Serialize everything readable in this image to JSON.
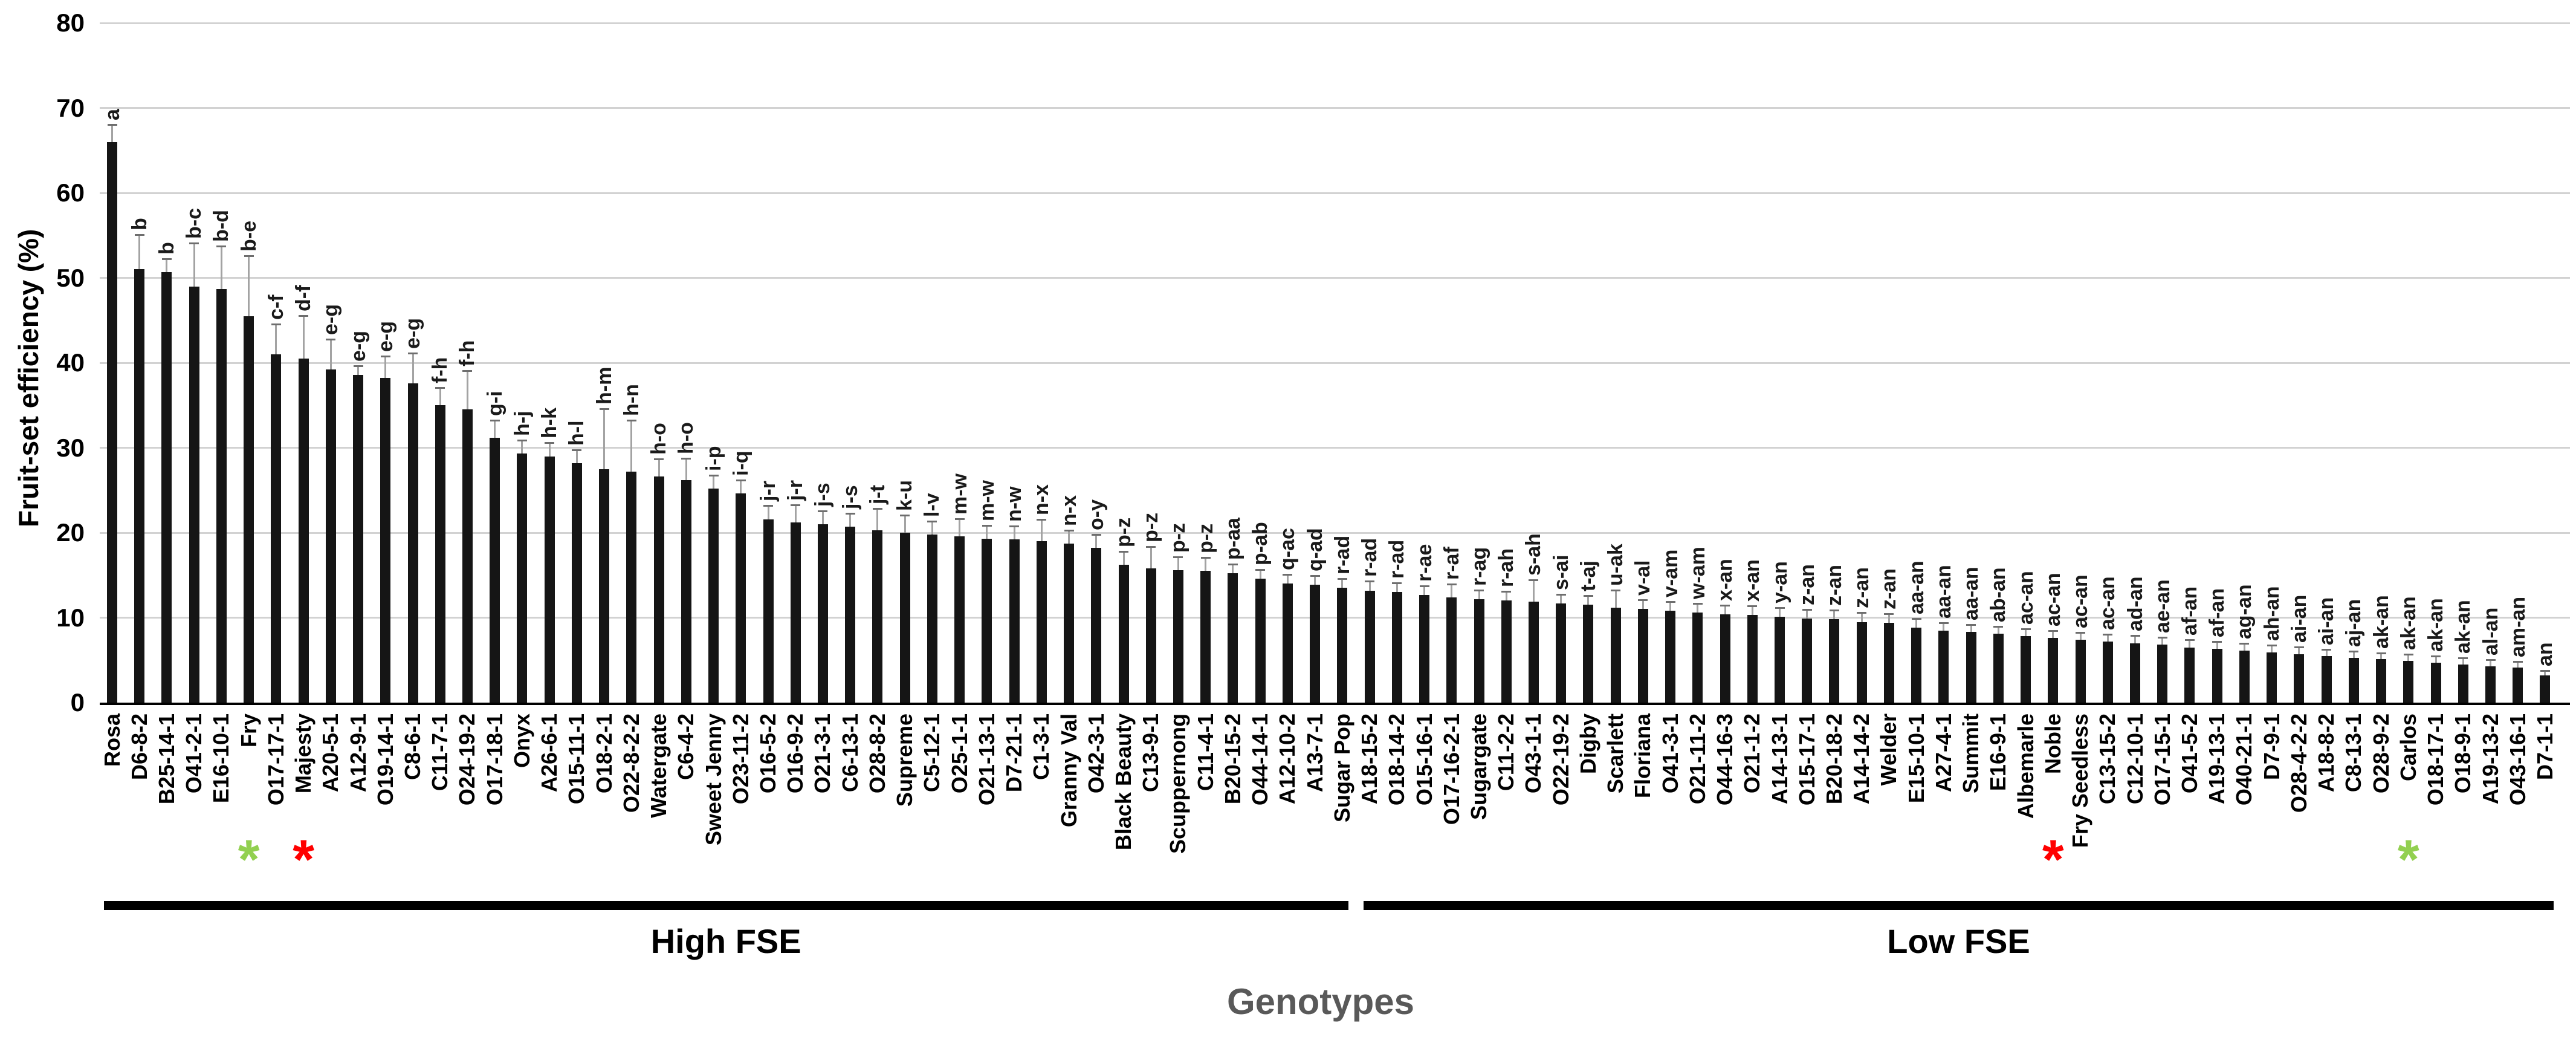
{
  "chart_data": {
    "type": "bar",
    "title": "",
    "ylabel": "Fruit-set efficiency (%)",
    "xlabel": "Genotypes",
    "ylim": [
      0,
      80
    ],
    "yticks": [
      0,
      10,
      20,
      30,
      40,
      50,
      60,
      70,
      80
    ],
    "grid": "horizontal",
    "legend": "none",
    "bar_color": "#151515",
    "group_labels": {
      "high": "High FSE",
      "low": "Low FSE"
    },
    "high_fse_count": 46,
    "annotations": {
      "green_star_genotypes": [
        "Fry",
        "Carlos"
      ],
      "red_star_genotypes": [
        "Majesty",
        "Noble"
      ],
      "green_color": "#92d050",
      "red_color": "#ff0000"
    },
    "bars": [
      {
        "genotype": "Rosa",
        "value": 66,
        "error": 2,
        "letters": "a",
        "star": null
      },
      {
        "genotype": "D6-8-2",
        "value": 51,
        "error": 4,
        "letters": "b",
        "star": null
      },
      {
        "genotype": "B25-14-1",
        "value": 50.7,
        "error": 1.5,
        "letters": "b",
        "star": null
      },
      {
        "genotype": "O41-2-1",
        "value": 49,
        "error": 5,
        "letters": "b-c",
        "star": null
      },
      {
        "genotype": "E16-10-1",
        "value": 48.7,
        "error": 5,
        "letters": "b-d",
        "star": null
      },
      {
        "genotype": "Fry",
        "value": 45.5,
        "error": 7,
        "letters": "b-e",
        "star": "green"
      },
      {
        "genotype": "O17-17-1",
        "value": 41,
        "error": 3.5,
        "letters": "c-f",
        "star": null
      },
      {
        "genotype": "Majesty",
        "value": 40.5,
        "error": 5,
        "letters": "d-f",
        "star": "red"
      },
      {
        "genotype": "A20-5-1",
        "value": 39.2,
        "error": 3.5,
        "letters": "e-g",
        "star": null
      },
      {
        "genotype": "A12-9-1",
        "value": 38.6,
        "error": 1,
        "letters": "e-g",
        "star": null
      },
      {
        "genotype": "O19-14-1",
        "value": 38.2,
        "error": 2.5,
        "letters": "e-g",
        "star": null
      },
      {
        "genotype": "C8-6-1",
        "value": 37.6,
        "error": 3.5,
        "letters": "e-g",
        "star": null
      },
      {
        "genotype": "C11-7-1",
        "value": 35,
        "error": 2,
        "letters": "f-h",
        "star": null
      },
      {
        "genotype": "O24-19-2",
        "value": 34.5,
        "error": 4.5,
        "letters": "f-h",
        "star": null
      },
      {
        "genotype": "O17-18-1",
        "value": 31.2,
        "error": 2,
        "letters": "g-i",
        "star": null
      },
      {
        "genotype": "Onyx",
        "value": 29.3,
        "error": 1.5,
        "letters": "h-j",
        "star": null
      },
      {
        "genotype": "A26-6-1",
        "value": 29,
        "error": 1.5,
        "letters": "h-k",
        "star": null
      },
      {
        "genotype": "O15-11-1",
        "value": 28.2,
        "error": 1.5,
        "letters": "h-l",
        "star": null
      },
      {
        "genotype": "O18-2-1",
        "value": 27.5,
        "error": 7,
        "letters": "h-m",
        "star": null
      },
      {
        "genotype": "O22-8-2-2",
        "value": 27.2,
        "error": 6,
        "letters": "h-n",
        "star": null
      },
      {
        "genotype": "Watergate",
        "value": 26.6,
        "error": 2,
        "letters": "h-o",
        "star": null
      },
      {
        "genotype": "C6-4-2",
        "value": 26.2,
        "error": 2.5,
        "letters": "h-o",
        "star": null
      },
      {
        "genotype": "Sweet Jenny",
        "value": 25.2,
        "error": 1.5,
        "letters": "i-p",
        "star": null
      },
      {
        "genotype": "O23-11-2",
        "value": 24.6,
        "error": 1.5,
        "letters": "i-q",
        "star": null
      },
      {
        "genotype": "O16-5-2",
        "value": 21.6,
        "error": 1.5,
        "letters": "j-r",
        "star": null
      },
      {
        "genotype": "O16-9-2",
        "value": 21.2,
        "error": 2,
        "letters": "j-r",
        "star": null
      },
      {
        "genotype": "O21-3-1",
        "value": 21,
        "error": 1.5,
        "letters": "j-s",
        "star": null
      },
      {
        "genotype": "C6-13-1",
        "value": 20.7,
        "error": 1.5,
        "letters": "j-s",
        "star": null
      },
      {
        "genotype": "O28-8-2",
        "value": 20.3,
        "error": 2.5,
        "letters": "j-t",
        "star": null
      },
      {
        "genotype": "Supreme",
        "value": 20,
        "error": 2,
        "letters": "k-u",
        "star": null
      },
      {
        "genotype": "C5-12-1",
        "value": 19.8,
        "error": 1.5,
        "letters": "l-v",
        "star": null
      },
      {
        "genotype": "O25-1-1",
        "value": 19.6,
        "error": 2,
        "letters": "m-w",
        "star": null
      },
      {
        "genotype": "O21-13-1",
        "value": 19.3,
        "error": 1.5,
        "letters": "m-w",
        "star": null
      },
      {
        "genotype": "D7-21-1",
        "value": 19.2,
        "error": 1.5,
        "letters": "n-w",
        "star": null
      },
      {
        "genotype": "C1-3-1",
        "value": 19,
        "error": 2.5,
        "letters": "n-x",
        "star": null
      },
      {
        "genotype": "Granny Val",
        "value": 18.7,
        "error": 1.5,
        "letters": "n-x",
        "star": null
      },
      {
        "genotype": "O42-3-1",
        "value": 18.2,
        "error": 1.5,
        "letters": "o-y",
        "star": null
      },
      {
        "genotype": "Black Beauty",
        "value": 16.2,
        "error": 1.5,
        "letters": "p-z",
        "star": null
      },
      {
        "genotype": "C13-9-1",
        "value": 15.8,
        "error": 2.5,
        "letters": "p-z",
        "star": null
      },
      {
        "genotype": "Scuppernong",
        "value": 15.6,
        "error": 1.5,
        "letters": "p-z",
        "star": null
      },
      {
        "genotype": "C11-4-1",
        "value": 15.5,
        "error": 1.5,
        "letters": "p-z",
        "star": null
      },
      {
        "genotype": "B20-15-2",
        "value": 15.2,
        "error": 1,
        "letters": "p-aa",
        "star": null
      },
      {
        "genotype": "O44-14-1",
        "value": 14.6,
        "error": 1,
        "letters": "p-ab",
        "star": null
      },
      {
        "genotype": "A12-10-2",
        "value": 14,
        "error": 1,
        "letters": "q-ac",
        "star": null
      },
      {
        "genotype": "A13-7-1",
        "value": 13.9,
        "error": 1,
        "letters": "q-ad",
        "star": null
      },
      {
        "genotype": "Sugar Pop",
        "value": 13.5,
        "error": 1,
        "letters": "r-ad",
        "star": null
      },
      {
        "genotype": "A18-15-2",
        "value": 13.2,
        "error": 1,
        "letters": "r-ad",
        "star": null
      },
      {
        "genotype": "O18-14-2",
        "value": 13,
        "error": 1,
        "letters": "r-ad",
        "star": null
      },
      {
        "genotype": "O15-16-1",
        "value": 12.7,
        "error": 1,
        "letters": "r-ae",
        "star": null
      },
      {
        "genotype": "O17-16-2-1",
        "value": 12.4,
        "error": 1.5,
        "letters": "r-af",
        "star": null
      },
      {
        "genotype": "Sugargate",
        "value": 12.2,
        "error": 1,
        "letters": "r-ag",
        "star": null
      },
      {
        "genotype": "C11-2-2",
        "value": 12,
        "error": 1,
        "letters": "r-ah",
        "star": null
      },
      {
        "genotype": "O43-1-1",
        "value": 11.9,
        "error": 2.5,
        "letters": "s-ah",
        "star": null
      },
      {
        "genotype": "O22-19-2",
        "value": 11.7,
        "error": 1,
        "letters": "s-ai",
        "star": null
      },
      {
        "genotype": "Digby",
        "value": 11.5,
        "error": 1,
        "letters": "t-aj",
        "star": null
      },
      {
        "genotype": "Scarlett",
        "value": 11.2,
        "error": 2,
        "letters": "u-ak",
        "star": null
      },
      {
        "genotype": "Floriana",
        "value": 11,
        "error": 1,
        "letters": "v-al",
        "star": null
      },
      {
        "genotype": "O41-3-1",
        "value": 10.8,
        "error": 1,
        "letters": "v-am",
        "star": null
      },
      {
        "genotype": "O21-11-2",
        "value": 10.6,
        "error": 1,
        "letters": "w-am",
        "star": null
      },
      {
        "genotype": "O44-16-3",
        "value": 10.4,
        "error": 1,
        "letters": "x-an",
        "star": null
      },
      {
        "genotype": "O21-1-2",
        "value": 10.3,
        "error": 1,
        "letters": "x-an",
        "star": null
      },
      {
        "genotype": "A14-13-1",
        "value": 10.1,
        "error": 1,
        "letters": "y-an",
        "star": null
      },
      {
        "genotype": "O15-17-1",
        "value": 9.9,
        "error": 1,
        "letters": "z-an",
        "star": null
      },
      {
        "genotype": "B20-18-2",
        "value": 9.8,
        "error": 1,
        "letters": "z-an",
        "star": null
      },
      {
        "genotype": "A14-14-2",
        "value": 9.5,
        "error": 1,
        "letters": "z-an",
        "star": null
      },
      {
        "genotype": "Welder",
        "value": 9.4,
        "error": 1,
        "letters": "z-an",
        "star": null
      },
      {
        "genotype": "E15-10-1",
        "value": 8.8,
        "error": 1,
        "letters": "aa-an",
        "star": null
      },
      {
        "genotype": "A27-4-1",
        "value": 8.5,
        "error": 0.8,
        "letters": "aa-an",
        "star": null
      },
      {
        "genotype": "Summit",
        "value": 8.3,
        "error": 0.8,
        "letters": "aa-an",
        "star": null
      },
      {
        "genotype": "E16-9-1",
        "value": 8.1,
        "error": 0.8,
        "letters": "ab-an",
        "star": null
      },
      {
        "genotype": "Albemarle",
        "value": 7.8,
        "error": 0.8,
        "letters": "ac-an",
        "star": null
      },
      {
        "genotype": "Noble",
        "value": 7.6,
        "error": 0.8,
        "letters": "ac-an",
        "star": "red"
      },
      {
        "genotype": "Fry Seedless",
        "value": 7.4,
        "error": 0.8,
        "letters": "ac-an",
        "star": null
      },
      {
        "genotype": "C13-15-2",
        "value": 7.2,
        "error": 0.8,
        "letters": "ac-an",
        "star": null
      },
      {
        "genotype": "C12-10-1",
        "value": 7,
        "error": 0.8,
        "letters": "ad-an",
        "star": null
      },
      {
        "genotype": "O17-15-1",
        "value": 6.8,
        "error": 0.8,
        "letters": "ae-an",
        "star": null
      },
      {
        "genotype": "O41-5-2",
        "value": 6.5,
        "error": 0.8,
        "letters": "af-an",
        "star": null
      },
      {
        "genotype": "A19-13-1",
        "value": 6.3,
        "error": 0.8,
        "letters": "af-an",
        "star": null
      },
      {
        "genotype": "O40-21-1",
        "value": 6.1,
        "error": 0.8,
        "letters": "ag-an",
        "star": null
      },
      {
        "genotype": "D7-9-1",
        "value": 5.9,
        "error": 0.8,
        "letters": "ah-an",
        "star": null
      },
      {
        "genotype": "O28-4-2-2",
        "value": 5.7,
        "error": 0.8,
        "letters": "ai-an",
        "star": null
      },
      {
        "genotype": "A18-8-2",
        "value": 5.5,
        "error": 0.7,
        "letters": "ai-an",
        "star": null
      },
      {
        "genotype": "C8-13-1",
        "value": 5.3,
        "error": 0.7,
        "letters": "aj-an",
        "star": null
      },
      {
        "genotype": "O28-9-2",
        "value": 5.1,
        "error": 0.7,
        "letters": "ak-an",
        "star": null
      },
      {
        "genotype": "Carlos",
        "value": 4.9,
        "error": 0.7,
        "letters": "ak-an",
        "star": "green"
      },
      {
        "genotype": "O18-17-1",
        "value": 4.7,
        "error": 0.7,
        "letters": "ak-an",
        "star": null
      },
      {
        "genotype": "O18-9-1",
        "value": 4.5,
        "error": 0.7,
        "letters": "ak-an",
        "star": null
      },
      {
        "genotype": "A19-13-2",
        "value": 4.3,
        "error": 0.7,
        "letters": "al-an",
        "star": null
      },
      {
        "genotype": "O43-16-1",
        "value": 4.1,
        "error": 0.7,
        "letters": "am-an",
        "star": null
      },
      {
        "genotype": "D7-1-1",
        "value": 3.2,
        "error": 0.5,
        "letters": "an",
        "star": null
      }
    ]
  }
}
